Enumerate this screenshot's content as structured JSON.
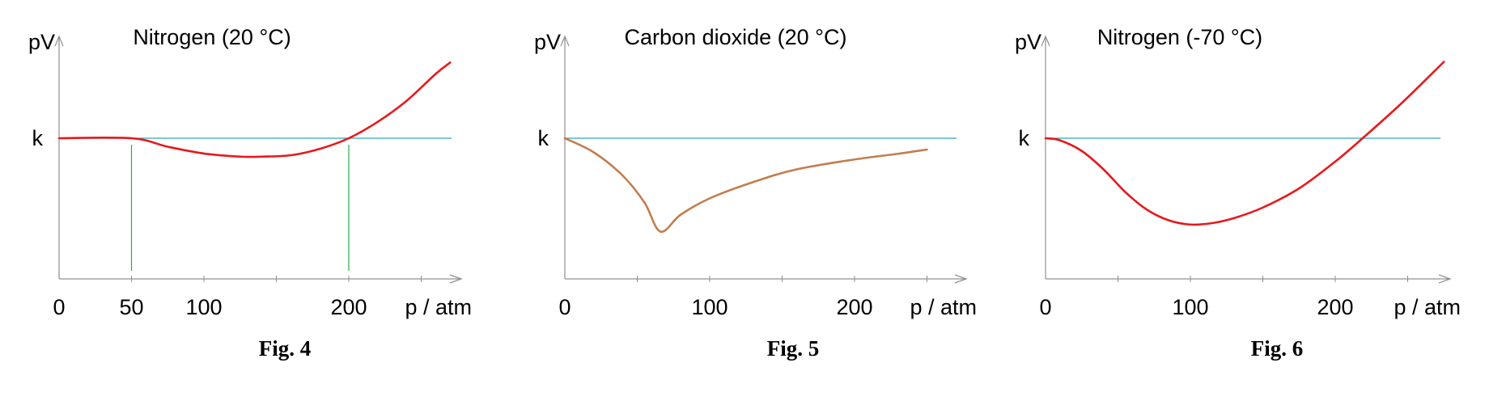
{
  "colors": {
    "axis": "#909090",
    "reference": "#2aa6b6",
    "guide": "#22b14c",
    "nitrogen_curve": "#e8181c",
    "co2_curve": "#c17e4f",
    "text": "#000000"
  },
  "chart_data": [
    {
      "type": "line",
      "title": "Nitrogen (20 °C)",
      "caption": "Fig. 4",
      "xlabel": "p / atm",
      "ylabel": "pV",
      "reference_label": "k",
      "xlim": [
        0,
        280
      ],
      "ylim": [
        0,
        1.6
      ],
      "reference_value": 1.0,
      "x_ticks": [
        0,
        50,
        100,
        200
      ],
      "x_minor_ticks": [
        150,
        250
      ],
      "guide_lines_x": [
        50,
        200
      ],
      "series": [
        {
          "x": [
            0,
            50,
            75,
            100,
            125,
            140,
            160,
            180,
            200,
            220,
            240,
            260,
            270
          ],
          "y": [
            1.0,
            1.0,
            0.94,
            0.892,
            0.87,
            0.87,
            0.88,
            0.925,
            1.0,
            1.116,
            1.265,
            1.455,
            1.535
          ]
        }
      ]
    },
    {
      "type": "line",
      "title": "Carbon dioxide (20 °C)",
      "caption": "Fig. 5",
      "xlabel": "p / atm",
      "ylabel": "pV",
      "reference_label": "k",
      "xlim": [
        0,
        280
      ],
      "ylim": [
        0,
        1.6
      ],
      "reference_value": 1.0,
      "x_ticks": [
        0,
        100,
        200
      ],
      "x_minor_ticks": [
        50,
        150,
        250
      ],
      "series": [
        {
          "x": [
            0,
            20,
            40,
            55,
            66,
            80,
            100,
            130,
            160,
            200,
            230,
            250
          ],
          "y": [
            1.0,
            0.9,
            0.735,
            0.545,
            0.34,
            0.46,
            0.575,
            0.69,
            0.78,
            0.85,
            0.89,
            0.92
          ]
        }
      ]
    },
    {
      "type": "line",
      "title": "Nitrogen (-70 °C)",
      "caption": "Fig. 6",
      "xlabel": "p / atm",
      "ylabel": "pV",
      "reference_label": "k",
      "xlim": [
        0,
        280
      ],
      "ylim": [
        0,
        1.6
      ],
      "reference_value": 1.0,
      "x_ticks": [
        0,
        100,
        200
      ],
      "x_minor_ticks": [
        50,
        150,
        250
      ],
      "series": [
        {
          "x": [
            0,
            10,
            25,
            40,
            55,
            70,
            85,
            100,
            115,
            130,
            150,
            175,
            200,
            220,
            245,
            275
          ],
          "y": [
            1.0,
            0.985,
            0.91,
            0.78,
            0.62,
            0.495,
            0.42,
            0.39,
            0.4,
            0.435,
            0.51,
            0.645,
            0.835,
            1.01,
            1.24,
            1.54
          ]
        }
      ]
    }
  ]
}
